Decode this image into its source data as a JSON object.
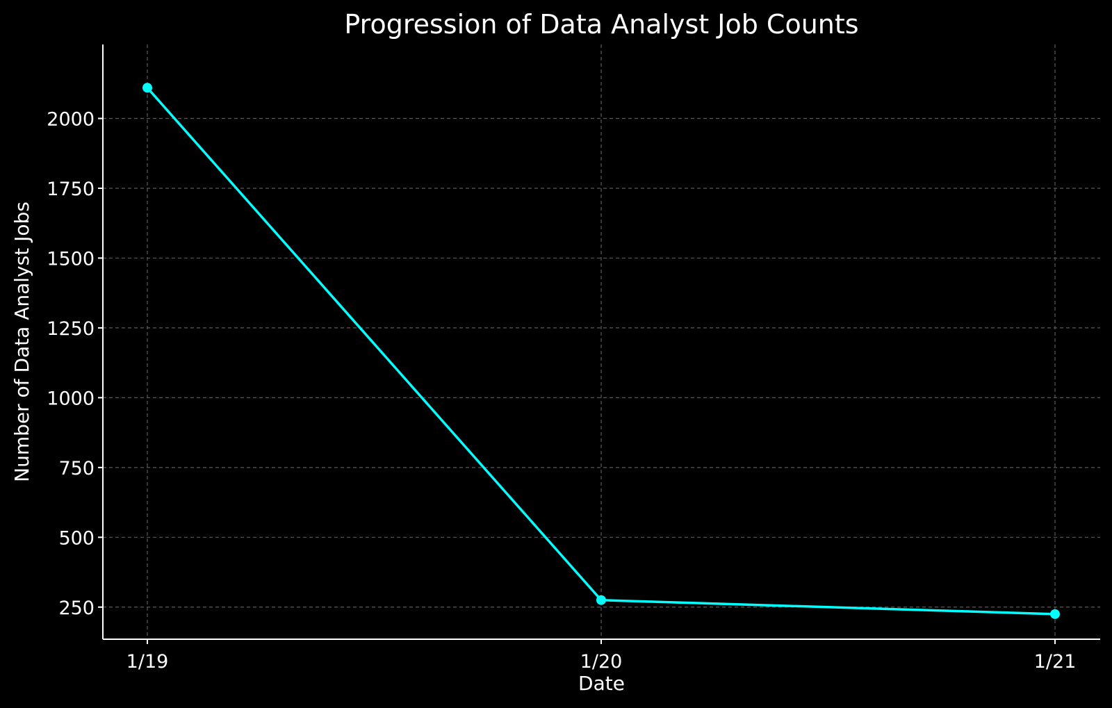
{
  "chart_data": {
    "type": "line",
    "title": "Progression of Data Analyst Job Counts",
    "xlabel": "Date",
    "ylabel": "Number of Data Analyst Jobs",
    "categories": [
      "1/19",
      "1/20",
      "1/21"
    ],
    "series": [
      {
        "values": [
          2110,
          275,
          225
        ],
        "color": "#00ffff"
      }
    ],
    "ylim": [
      135,
      2265
    ],
    "yticks": [
      250,
      500,
      750,
      1000,
      1250,
      1500,
      1750,
      2000
    ],
    "grid": true,
    "legend": "none",
    "colors": {
      "background": "#000000",
      "text": "#ffffff",
      "grid": "#5a5a5a",
      "axis": "#ffffff"
    }
  }
}
